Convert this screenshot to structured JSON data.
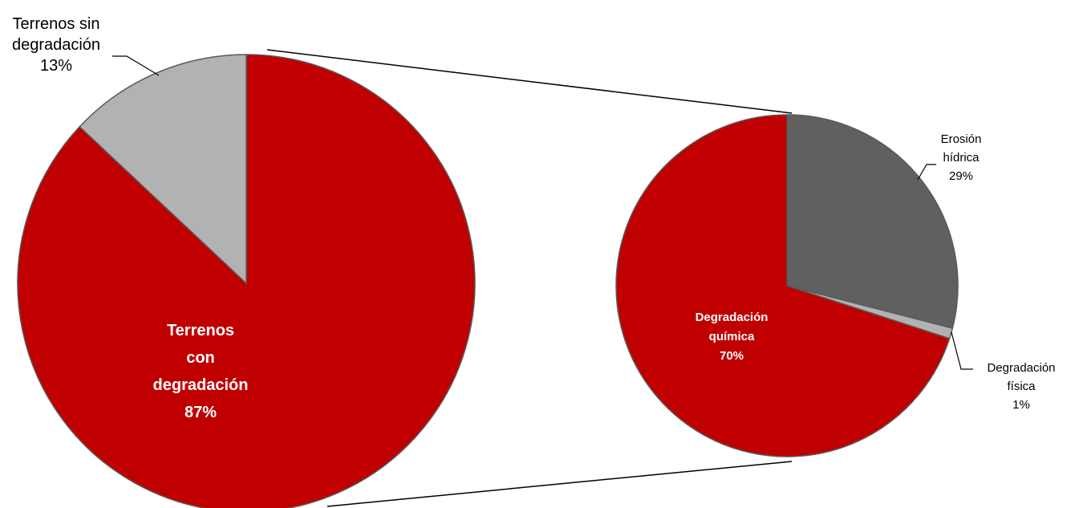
{
  "chart_data": [
    {
      "type": "pie",
      "slices": [
        {
          "label_lines": [
            "Terrenos",
            "con",
            "degradación",
            "87%"
          ],
          "value": 87,
          "color": "#C00000"
        },
        {
          "label_lines": [
            "Terrenos sin",
            "degradación",
            "13%"
          ],
          "value": 13,
          "color": "#B2B2B2"
        }
      ]
    },
    {
      "type": "pie",
      "slices": [
        {
          "label_lines": [
            "Erosión",
            "hídrica",
            "29%"
          ],
          "value": 29,
          "color": "#606060"
        },
        {
          "label_lines": [
            "Degradación",
            "física",
            "1%"
          ],
          "value": 1,
          "color": "#B2B2B2"
        },
        {
          "label_lines": [
            "Degradación",
            "química",
            "70%"
          ],
          "value": 70,
          "color": "#C00000"
        }
      ]
    }
  ]
}
